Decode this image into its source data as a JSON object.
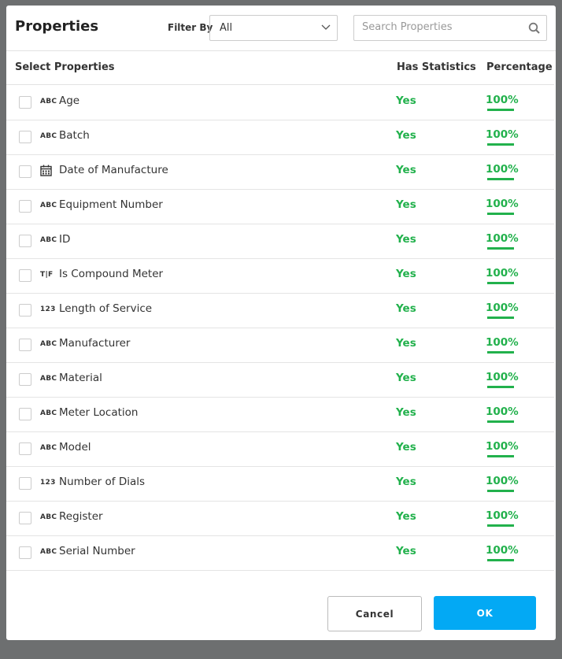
{
  "header": {
    "title": "Properties",
    "filter_label": "Filter By",
    "filter_value": "All",
    "search_placeholder": "Search Properties"
  },
  "table": {
    "columns": [
      "Select Properties",
      "Has Statistics",
      "Percentage"
    ],
    "rows": [
      {
        "type_label": "ABC",
        "name": "Age",
        "statistics": "Yes",
        "percentage": "100%"
      },
      {
        "type_label": "ABC",
        "name": "Batch",
        "statistics": "Yes",
        "percentage": "100%"
      },
      {
        "name": "Date of Manufacture",
        "statistics": "Yes",
        "percentage": "100%"
      },
      {
        "type_label": "ABC",
        "name": "Equipment Number",
        "statistics": "Yes",
        "percentage": "100%"
      },
      {
        "type_label": "ABC",
        "name": "ID",
        "statistics": "Yes",
        "percentage": "100%"
      },
      {
        "type_label": "T|F",
        "name": "Is Compound Meter",
        "statistics": "Yes",
        "percentage": "100%"
      },
      {
        "type_label": "123",
        "name": "Length of Service",
        "statistics": "Yes",
        "percentage": "100%"
      },
      {
        "type_label": "ABC",
        "name": "Manufacturer",
        "statistics": "Yes",
        "percentage": "100%"
      },
      {
        "type_label": "ABC",
        "name": "Material",
        "statistics": "Yes",
        "percentage": "100%"
      },
      {
        "type_label": "ABC",
        "name": "Meter Location",
        "statistics": "Yes",
        "percentage": "100%"
      },
      {
        "type_label": "ABC",
        "name": "Model",
        "statistics": "Yes",
        "percentage": "100%"
      },
      {
        "type_label": "123",
        "name": "Number of Dials",
        "statistics": "Yes",
        "percentage": "100%"
      },
      {
        "type_label": "ABC",
        "name": "Register",
        "statistics": "Yes",
        "percentage": "100%"
      },
      {
        "type_label": "ABC",
        "name": "Serial Number",
        "statistics": "Yes",
        "percentage": "100%"
      }
    ]
  },
  "footer": {
    "cancel": "Cancel",
    "ok": "OK"
  }
}
